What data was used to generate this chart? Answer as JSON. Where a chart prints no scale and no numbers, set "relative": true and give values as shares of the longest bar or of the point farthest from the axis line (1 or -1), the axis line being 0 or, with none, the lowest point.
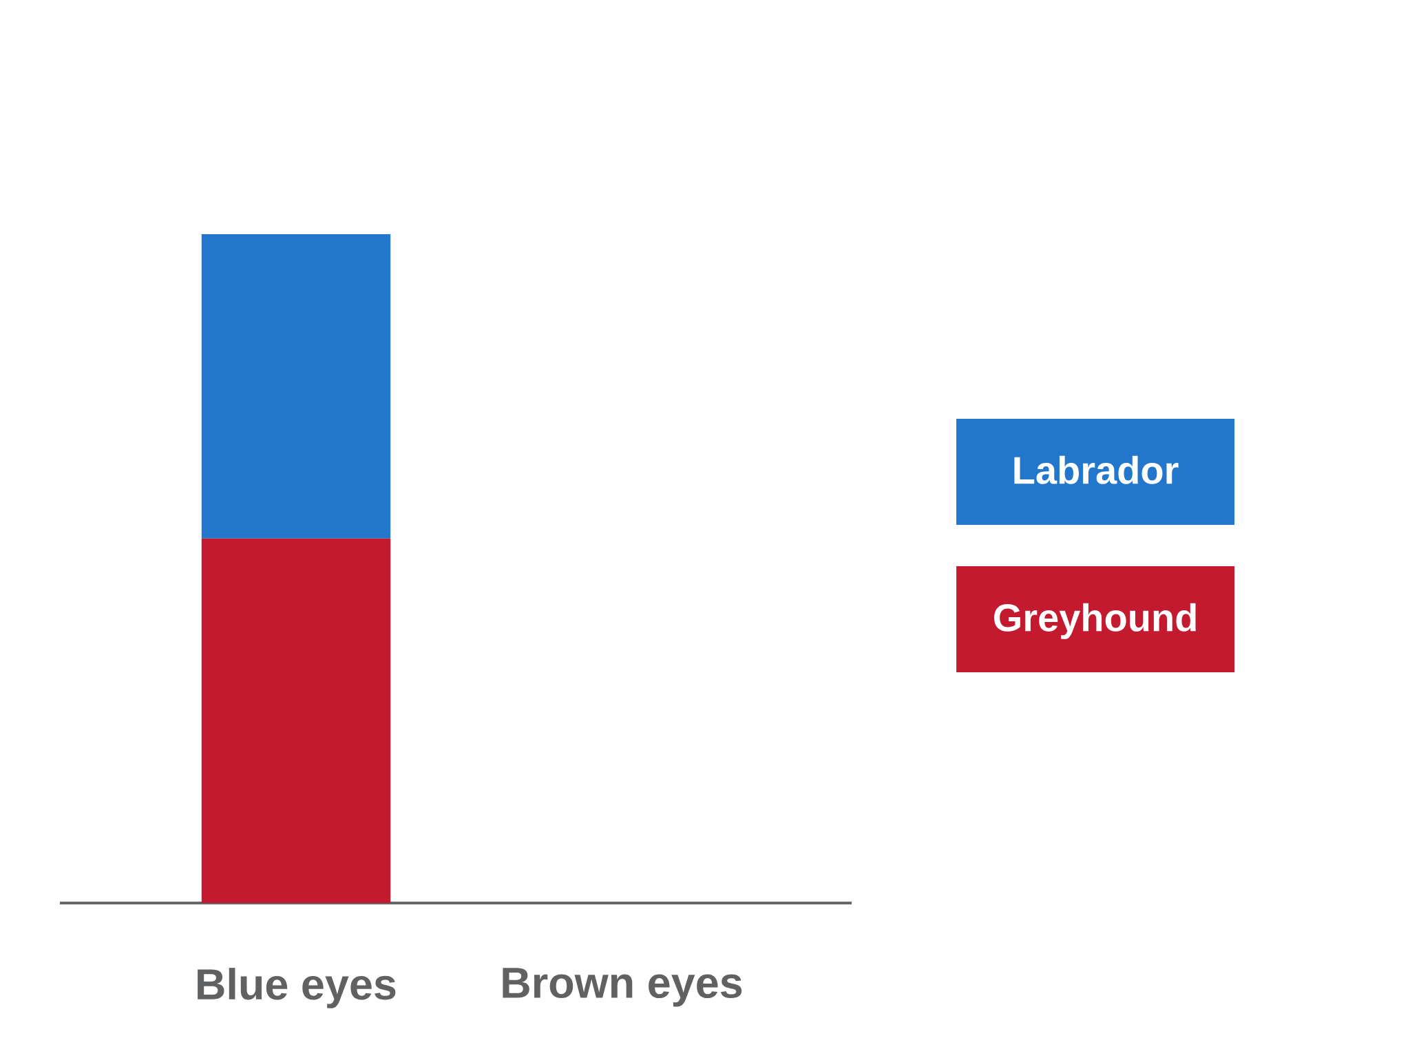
{
  "chart_data": {
    "type": "bar",
    "stacked": true,
    "relative": true,
    "categories": [
      "Blue eyes",
      "Brown eyes"
    ],
    "series": [
      {
        "name": "Greyhound",
        "color": "#c41a30",
        "values": [
          0.545,
          null
        ]
      },
      {
        "name": "Labrador",
        "color": "#2277cc",
        "values": [
          0.455,
          null
        ]
      }
    ],
    "legend": "right"
  }
}
